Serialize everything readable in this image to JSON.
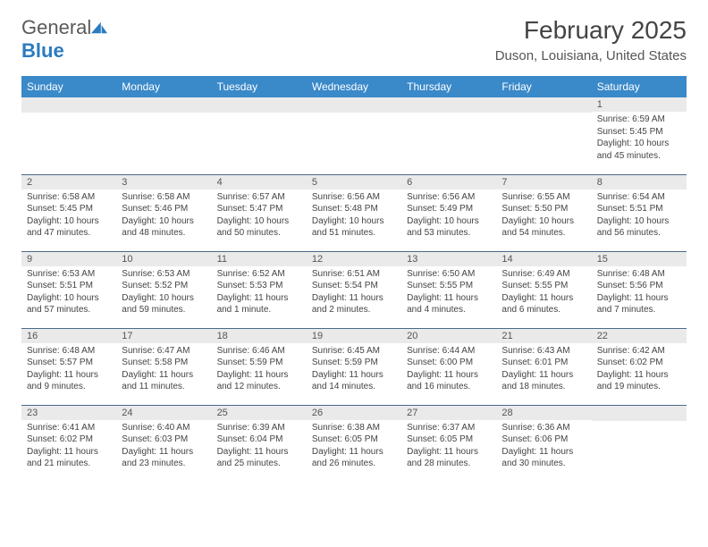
{
  "logo": {
    "general": "General",
    "blue": "Blue"
  },
  "title": "February 2025",
  "location": "Duson, Louisiana, United States",
  "colors": {
    "header_bg": "#3a89c9",
    "header_text": "#ffffff",
    "daynum_bg": "#eaeaea",
    "border": "#4a6a8a",
    "text": "#444444",
    "logo_blue": "#2b7bbf"
  },
  "weekdays": [
    "Sunday",
    "Monday",
    "Tuesday",
    "Wednesday",
    "Thursday",
    "Friday",
    "Saturday"
  ],
  "grid": [
    [
      null,
      null,
      null,
      null,
      null,
      null,
      {
        "n": "1",
        "sr": "Sunrise: 6:59 AM",
        "ss": "Sunset: 5:45 PM",
        "dl": "Daylight: 10 hours and 45 minutes."
      }
    ],
    [
      {
        "n": "2",
        "sr": "Sunrise: 6:58 AM",
        "ss": "Sunset: 5:45 PM",
        "dl": "Daylight: 10 hours and 47 minutes."
      },
      {
        "n": "3",
        "sr": "Sunrise: 6:58 AM",
        "ss": "Sunset: 5:46 PM",
        "dl": "Daylight: 10 hours and 48 minutes."
      },
      {
        "n": "4",
        "sr": "Sunrise: 6:57 AM",
        "ss": "Sunset: 5:47 PM",
        "dl": "Daylight: 10 hours and 50 minutes."
      },
      {
        "n": "5",
        "sr": "Sunrise: 6:56 AM",
        "ss": "Sunset: 5:48 PM",
        "dl": "Daylight: 10 hours and 51 minutes."
      },
      {
        "n": "6",
        "sr": "Sunrise: 6:56 AM",
        "ss": "Sunset: 5:49 PM",
        "dl": "Daylight: 10 hours and 53 minutes."
      },
      {
        "n": "7",
        "sr": "Sunrise: 6:55 AM",
        "ss": "Sunset: 5:50 PM",
        "dl": "Daylight: 10 hours and 54 minutes."
      },
      {
        "n": "8",
        "sr": "Sunrise: 6:54 AM",
        "ss": "Sunset: 5:51 PM",
        "dl": "Daylight: 10 hours and 56 minutes."
      }
    ],
    [
      {
        "n": "9",
        "sr": "Sunrise: 6:53 AM",
        "ss": "Sunset: 5:51 PM",
        "dl": "Daylight: 10 hours and 57 minutes."
      },
      {
        "n": "10",
        "sr": "Sunrise: 6:53 AM",
        "ss": "Sunset: 5:52 PM",
        "dl": "Daylight: 10 hours and 59 minutes."
      },
      {
        "n": "11",
        "sr": "Sunrise: 6:52 AM",
        "ss": "Sunset: 5:53 PM",
        "dl": "Daylight: 11 hours and 1 minute."
      },
      {
        "n": "12",
        "sr": "Sunrise: 6:51 AM",
        "ss": "Sunset: 5:54 PM",
        "dl": "Daylight: 11 hours and 2 minutes."
      },
      {
        "n": "13",
        "sr": "Sunrise: 6:50 AM",
        "ss": "Sunset: 5:55 PM",
        "dl": "Daylight: 11 hours and 4 minutes."
      },
      {
        "n": "14",
        "sr": "Sunrise: 6:49 AM",
        "ss": "Sunset: 5:55 PM",
        "dl": "Daylight: 11 hours and 6 minutes."
      },
      {
        "n": "15",
        "sr": "Sunrise: 6:48 AM",
        "ss": "Sunset: 5:56 PM",
        "dl": "Daylight: 11 hours and 7 minutes."
      }
    ],
    [
      {
        "n": "16",
        "sr": "Sunrise: 6:48 AM",
        "ss": "Sunset: 5:57 PM",
        "dl": "Daylight: 11 hours and 9 minutes."
      },
      {
        "n": "17",
        "sr": "Sunrise: 6:47 AM",
        "ss": "Sunset: 5:58 PM",
        "dl": "Daylight: 11 hours and 11 minutes."
      },
      {
        "n": "18",
        "sr": "Sunrise: 6:46 AM",
        "ss": "Sunset: 5:59 PM",
        "dl": "Daylight: 11 hours and 12 minutes."
      },
      {
        "n": "19",
        "sr": "Sunrise: 6:45 AM",
        "ss": "Sunset: 5:59 PM",
        "dl": "Daylight: 11 hours and 14 minutes."
      },
      {
        "n": "20",
        "sr": "Sunrise: 6:44 AM",
        "ss": "Sunset: 6:00 PM",
        "dl": "Daylight: 11 hours and 16 minutes."
      },
      {
        "n": "21",
        "sr": "Sunrise: 6:43 AM",
        "ss": "Sunset: 6:01 PM",
        "dl": "Daylight: 11 hours and 18 minutes."
      },
      {
        "n": "22",
        "sr": "Sunrise: 6:42 AM",
        "ss": "Sunset: 6:02 PM",
        "dl": "Daylight: 11 hours and 19 minutes."
      }
    ],
    [
      {
        "n": "23",
        "sr": "Sunrise: 6:41 AM",
        "ss": "Sunset: 6:02 PM",
        "dl": "Daylight: 11 hours and 21 minutes."
      },
      {
        "n": "24",
        "sr": "Sunrise: 6:40 AM",
        "ss": "Sunset: 6:03 PM",
        "dl": "Daylight: 11 hours and 23 minutes."
      },
      {
        "n": "25",
        "sr": "Sunrise: 6:39 AM",
        "ss": "Sunset: 6:04 PM",
        "dl": "Daylight: 11 hours and 25 minutes."
      },
      {
        "n": "26",
        "sr": "Sunrise: 6:38 AM",
        "ss": "Sunset: 6:05 PM",
        "dl": "Daylight: 11 hours and 26 minutes."
      },
      {
        "n": "27",
        "sr": "Sunrise: 6:37 AM",
        "ss": "Sunset: 6:05 PM",
        "dl": "Daylight: 11 hours and 28 minutes."
      },
      {
        "n": "28",
        "sr": "Sunrise: 6:36 AM",
        "ss": "Sunset: 6:06 PM",
        "dl": "Daylight: 11 hours and 30 minutes."
      },
      null
    ]
  ]
}
